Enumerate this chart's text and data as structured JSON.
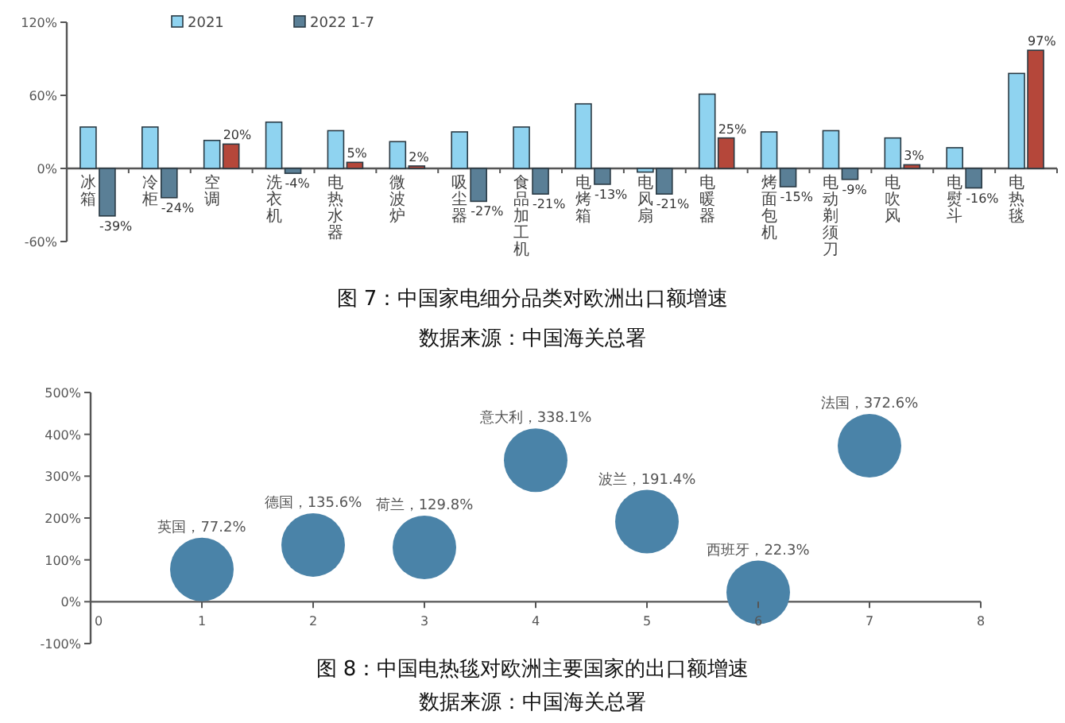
{
  "chart_data": [
    {
      "type": "bar",
      "title": "图 7：中国家电细分品类对欧洲出口额增速",
      "annotations": [
        "数据来源：中国海关总署"
      ],
      "categories": [
        "冰箱",
        "冷柜",
        "空调",
        "洗衣机",
        "电热水器",
        "微波炉",
        "吸尘器",
        "食品加工机",
        "电烤箱",
        "电风扇",
        "电暖器",
        "烤面包机",
        "电动剃须刀",
        "电吹风",
        "电熨斗",
        "电热毯"
      ],
      "series": [
        {
          "name": "2021",
          "color": "#8fd3f0",
          "values": [
            34,
            34,
            23,
            38,
            31,
            22,
            30,
            34,
            53,
            -3,
            61,
            30,
            31,
            25,
            17,
            78
          ]
        },
        {
          "name": "2022 1-7",
          "color": "#5a7f96",
          "colors": [
            "#5a7f96",
            "#5a7f96",
            "#b5473a",
            "#5a7f96",
            "#b5473a",
            "#b5473a",
            "#5a7f96",
            "#5a7f96",
            "#5a7f96",
            "#5a7f96",
            "#b5473a",
            "#5a7f96",
            "#5a7f96",
            "#b5473a",
            "#5a7f96",
            "#b5473a"
          ],
          "values": [
            -39,
            -24,
            20,
            -4,
            5,
            2,
            -27,
            -21,
            -13,
            -21,
            25,
            -15,
            -9,
            3,
            -16,
            97
          ],
          "value_labels": [
            "-39%",
            "-24%",
            "20%",
            "-4%",
            "5%",
            "2%",
            "-27%",
            "-21%",
            "-13%",
            "-21%",
            "25%",
            "-15%",
            "-9%",
            "3%",
            "-16%",
            "97%"
          ]
        }
      ],
      "ylim": [
        -60,
        120
      ],
      "yticks": [
        {
          "value": -60,
          "label": "-60%"
        },
        {
          "value": 0,
          "label": "0%"
        },
        {
          "value": 60,
          "label": "60%"
        },
        {
          "value": 120,
          "label": "120%"
        }
      ],
      "legend": "top"
    },
    {
      "type": "scatter",
      "title": "图 8：中国电热毯对欧洲主要国家的出口额增速",
      "x": [
        1,
        2,
        3,
        4,
        5,
        6,
        7
      ],
      "values": [
        77.2,
        135.6,
        129.8,
        338.1,
        191.4,
        22.3,
        372.6
      ],
      "color": "#4a83a8",
      "marker": "circle",
      "xlim": [
        0,
        8
      ],
      "xticks": [
        0,
        1,
        2,
        3,
        4,
        5,
        6,
        7,
        8
      ],
      "ylim": [
        -100,
        500
      ],
      "yticks": [
        {
          "value": -100,
          "label": "-100%"
        },
        {
          "value": 0,
          "label": "0%"
        },
        {
          "value": 100,
          "label": "100%"
        },
        {
          "value": 200,
          "label": "200%"
        },
        {
          "value": 300,
          "label": "300%"
        },
        {
          "value": 400,
          "label": "400%"
        },
        {
          "value": 500,
          "label": "500%"
        }
      ],
      "annotations": [
        {
          "text": "英国，77.2%",
          "x": 1,
          "y": 77.2
        },
        {
          "text": "德国，135.6%",
          "x": 2,
          "y": 135.6
        },
        {
          "text": "荷兰，129.8%",
          "x": 3,
          "y": 129.8
        },
        {
          "text": "意大利，338.1%",
          "x": 4,
          "y": 338.1
        },
        {
          "text": "波兰，191.4%",
          "x": 5,
          "y": 191.4
        },
        {
          "text": "西班牙，22.3%",
          "x": 6,
          "y": 22.3
        },
        {
          "text": "法国，372.6%",
          "x": 7,
          "y": 372.6
        },
        "数据来源：中国海关总署"
      ]
    }
  ]
}
